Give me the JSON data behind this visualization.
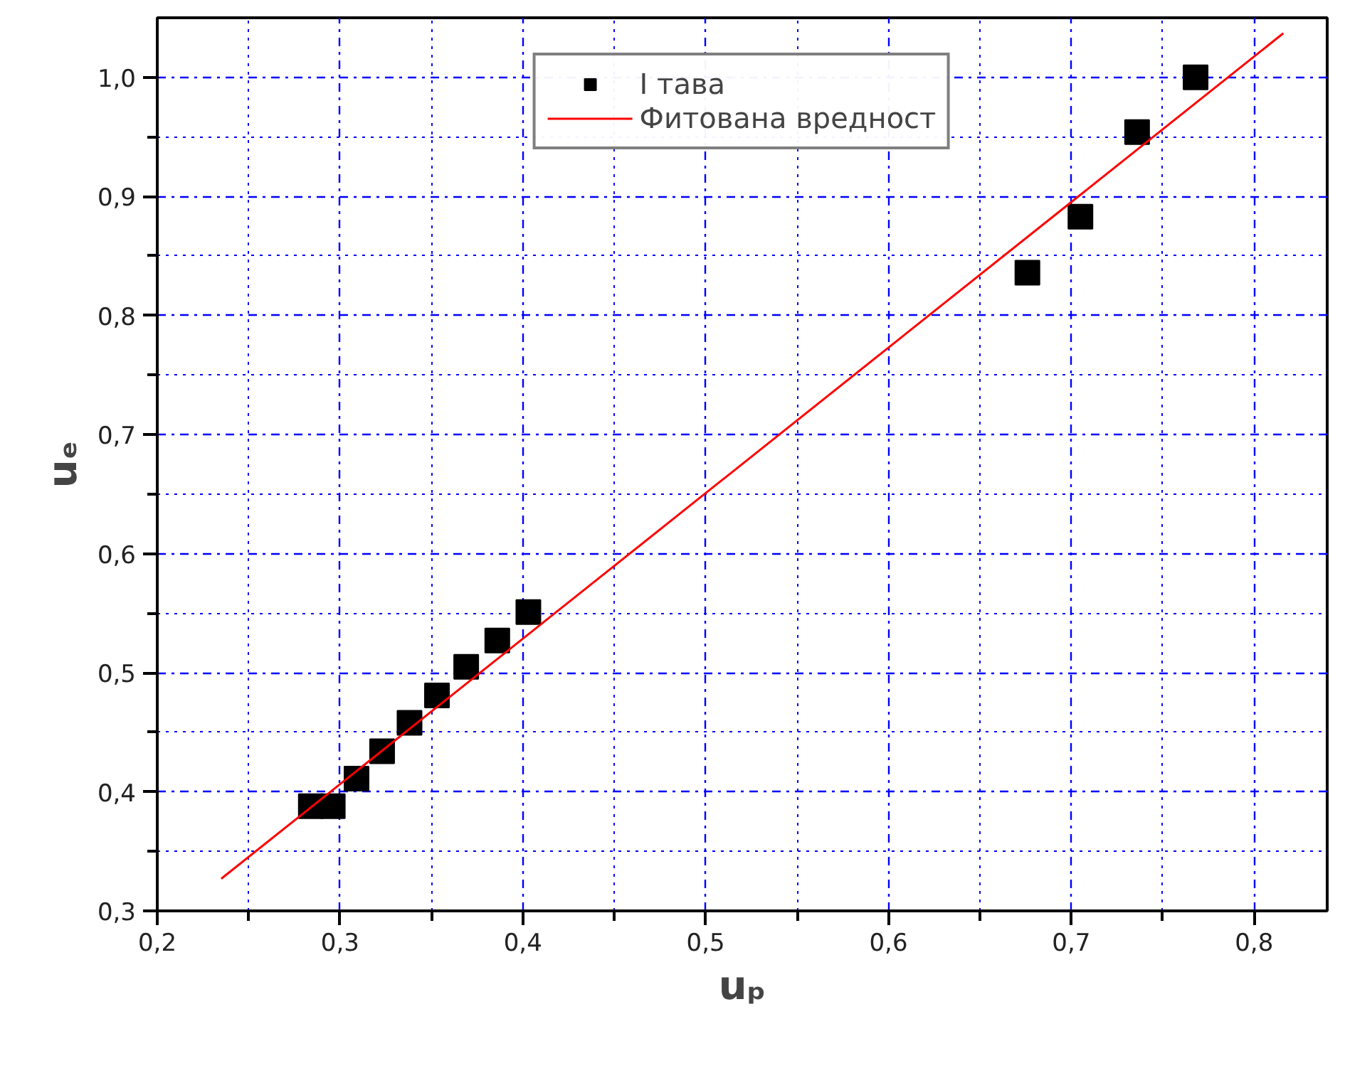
{
  "chart_data": {
    "type": "scatter",
    "xlabel": "uₚ",
    "ylabel": "uₑ",
    "xlim": [
      0.2,
      0.84
    ],
    "ylim": [
      0.3,
      1.05
    ],
    "xticks": [
      {
        "value": 0.2,
        "label": "0,2"
      },
      {
        "value": 0.25,
        "label": null
      },
      {
        "value": 0.3,
        "label": "0,3"
      },
      {
        "value": 0.35,
        "label": null
      },
      {
        "value": 0.4,
        "label": "0,4"
      },
      {
        "value": 0.45,
        "label": null
      },
      {
        "value": 0.5,
        "label": "0,5"
      },
      {
        "value": 0.55,
        "label": null
      },
      {
        "value": 0.6,
        "label": "0,6"
      },
      {
        "value": 0.65,
        "label": null
      },
      {
        "value": 0.7,
        "label": "0,7"
      },
      {
        "value": 0.75,
        "label": null
      },
      {
        "value": 0.8,
        "label": "0,8"
      }
    ],
    "yticks": [
      {
        "value": 0.3,
        "label": "0,3"
      },
      {
        "value": 0.35,
        "label": null
      },
      {
        "value": 0.4,
        "label": "0,4"
      },
      {
        "value": 0.45,
        "label": null
      },
      {
        "value": 0.5,
        "label": "0,5"
      },
      {
        "value": 0.55,
        "label": null
      },
      {
        "value": 0.6,
        "label": "0,6"
      },
      {
        "value": 0.65,
        "label": null
      },
      {
        "value": 0.7,
        "label": "0,7"
      },
      {
        "value": 0.75,
        "label": null
      },
      {
        "value": 0.8,
        "label": "0,8"
      },
      {
        "value": 0.85,
        "label": null
      },
      {
        "value": 0.9,
        "label": "0,9"
      },
      {
        "value": 0.95,
        "label": null
      },
      {
        "value": 1.0,
        "label": "1,0"
      }
    ],
    "grid": true,
    "legend": "top",
    "series": [
      {
        "name": "I тава",
        "marker": "square",
        "color": "#000000",
        "x": [
          0.284,
          0.296,
          0.309,
          0.323,
          0.338,
          0.353,
          0.369,
          0.386,
          0.403,
          0.676,
          0.705,
          0.736,
          0.768
        ],
        "values": [
          0.388,
          0.388,
          0.411,
          0.434,
          0.458,
          0.481,
          0.505,
          0.527,
          0.551,
          0.836,
          0.883,
          0.954,
          1.0
        ]
      },
      {
        "name": "Фитована вредност",
        "type": "line",
        "marker": "none",
        "line_style": "solid",
        "color": "#ff0000",
        "x": [
          0.235,
          0.816
        ],
        "values": [
          0.327,
          1.037
        ]
      }
    ]
  }
}
